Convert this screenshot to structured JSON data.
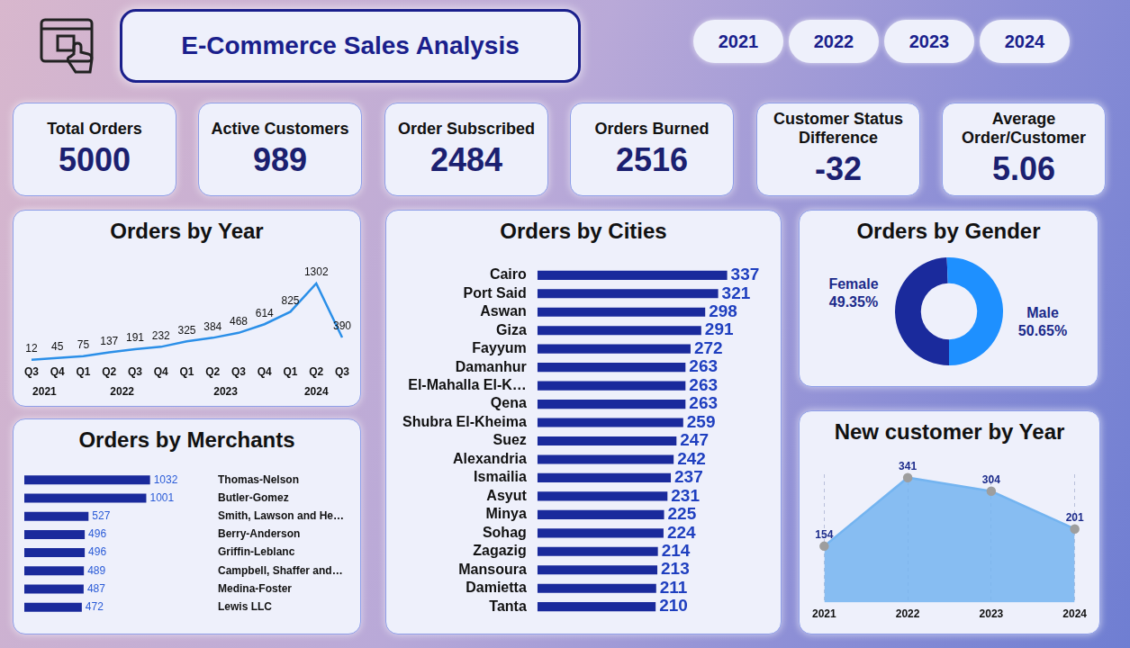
{
  "header": {
    "title": "E-Commerce Sales Analysis",
    "years": [
      "2021",
      "2022",
      "2023",
      "2024"
    ]
  },
  "kpis": [
    {
      "label": "Total Orders",
      "value": 5000
    },
    {
      "label": "Active Customers",
      "value": 989
    },
    {
      "label": "Order Subscribed",
      "value": 2484
    },
    {
      "label": "Orders Burned",
      "value": 2516
    },
    {
      "label": "Customer Status Difference",
      "value": -32
    },
    {
      "label": "Average Order/Customer",
      "value": 5.06
    }
  ],
  "chart_data": [
    {
      "type": "line",
      "title": "Orders by Year",
      "categories": [
        "Q3",
        "Q4",
        "Q1",
        "Q2",
        "Q3",
        "Q4",
        "Q1",
        "Q2",
        "Q3",
        "Q4",
        "Q1",
        "Q2",
        "Q3"
      ],
      "category_groups": [
        "2021",
        "2021",
        "2022",
        "2022",
        "2022",
        "2022",
        "2023",
        "2023",
        "2023",
        "2023",
        "2024",
        "2024",
        "2024"
      ],
      "values": [
        12,
        45,
        75,
        137,
        191,
        232,
        325,
        384,
        468,
        614,
        825,
        1302,
        390
      ],
      "color": "#2b8fe8",
      "data_labels": true,
      "tick_labels": "x",
      "grid": false
    },
    {
      "type": "bar",
      "title": "Orders by Merchants",
      "orientation": "horizontal",
      "categories": [
        "Thomas-Nelson",
        "Butler-Gomez",
        "Smith, Lawson and He…",
        "Berry-Anderson",
        "Griffin-Leblanc",
        "Campbell, Shaffer and…",
        "Medina-Foster",
        "Lewis LLC"
      ],
      "values": [
        1032,
        1001,
        527,
        496,
        496,
        489,
        487,
        472
      ],
      "color": "#1a2a9c",
      "data_labels": true,
      "tick_labels": "y",
      "grid": false
    },
    {
      "type": "bar",
      "title": "Orders by Cities",
      "orientation": "horizontal",
      "categories": [
        "Cairo",
        "Port Said",
        "Aswan",
        "Giza",
        "Fayyum",
        "Damanhur",
        "El-Mahalla El-K…",
        "Qena",
        "Shubra El-Kheima",
        "Suez",
        "Alexandria",
        "Ismailia",
        "Asyut",
        "Minya",
        "Sohag",
        "Zagazig",
        "Mansoura",
        "Damietta",
        "Tanta"
      ],
      "values": [
        337,
        321,
        298,
        291,
        272,
        263,
        263,
        263,
        259,
        247,
        242,
        237,
        231,
        225,
        224,
        214,
        213,
        211,
        210
      ],
      "color": "#1a2a9c",
      "data_labels": true,
      "tick_labels": "y",
      "grid": false
    },
    {
      "type": "doughnut",
      "title": "Orders by Gender",
      "categories": [
        "Female",
        "Male"
      ],
      "values": [
        49.35,
        50.65
      ],
      "value_labels": [
        "49.35%",
        "50.65%"
      ],
      "colors": [
        "#1a2a9c",
        "#1e90ff"
      ],
      "data_labels": true
    },
    {
      "type": "area",
      "title": "New customer by Year",
      "categories": [
        "2021",
        "2022",
        "2023",
        "2024"
      ],
      "values": [
        154,
        341,
        304,
        201
      ],
      "color": "#74b4f0",
      "marker": "circle",
      "data_labels": true,
      "tick_labels": "x",
      "grid": true
    }
  ]
}
